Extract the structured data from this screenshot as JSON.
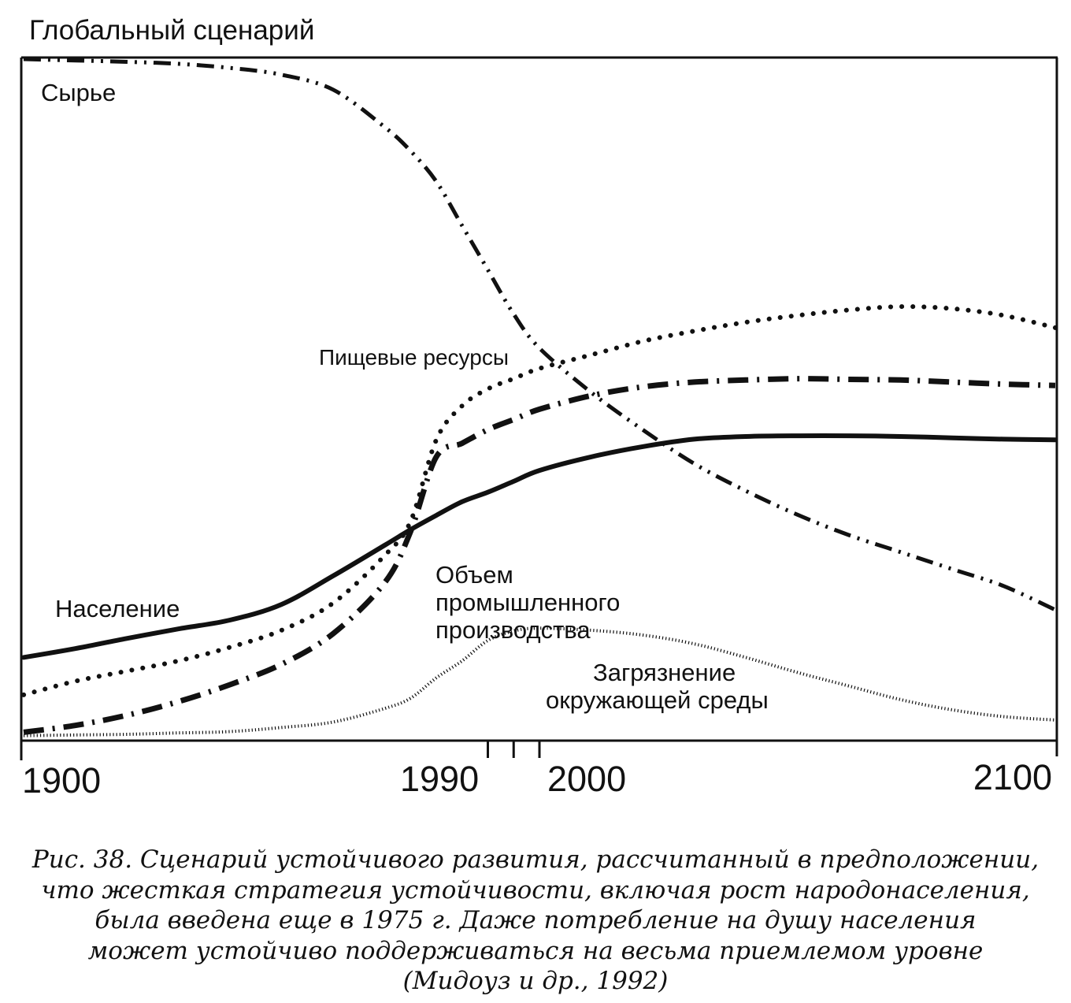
{
  "chart_data": {
    "type": "line",
    "title": "Глобальный сценарий",
    "x": [
      1900,
      1910,
      1920,
      1930,
      1940,
      1950,
      1960,
      1970,
      1975,
      1980,
      1985,
      1990,
      1995,
      2000,
      2010,
      2020,
      2030,
      2040,
      2050,
      2060,
      2070,
      2080,
      2090,
      2100
    ],
    "xlim": [
      1900,
      2100
    ],
    "ylim": [
      0,
      100
    ],
    "x_ticks": [
      {
        "value": 1900,
        "label": "1900"
      },
      {
        "value": 1990,
        "label": "1990"
      },
      {
        "value": 2000,
        "label": "2000"
      },
      {
        "value": 2100,
        "label": "2100"
      }
    ],
    "minor_ticks": [
      1990,
      1995,
      2000
    ],
    "series": [
      {
        "name": "Сырье",
        "style": "dash-dot-dot",
        "label": "Сырье",
        "values": [
          100,
          99.8,
          99.6,
          99.3,
          98.7,
          97.7,
          95.5,
          90,
          86.5,
          82,
          75.5,
          69,
          62.5,
          57.5,
          51,
          45.5,
          40.5,
          36.5,
          33,
          30,
          27.5,
          25,
          22.5,
          19
        ]
      },
      {
        "name": "Пищевые ресурсы",
        "style": "dotted",
        "label": "Пищевые ресурсы",
        "values": [
          6.5,
          8.5,
          10,
          11.5,
          13.5,
          16,
          20,
          27,
          32,
          44,
          49,
          51.5,
          53,
          54.5,
          56.5,
          58.5,
          60,
          61.3,
          62.3,
          63.1,
          63.6,
          63.3,
          62.3,
          60.5
        ]
      },
      {
        "name": "Объем промышленного производства",
        "style": "dash-dot",
        "label": [
          "Объем",
          "промышленного",
          "производства"
        ],
        "values": [
          1,
          2,
          3.5,
          5.5,
          8,
          11,
          15.5,
          23,
          30.5,
          41.5,
          43.5,
          45.5,
          47,
          48.5,
          50.5,
          51.8,
          52.5,
          52.8,
          53,
          52.9,
          52.8,
          52.5,
          52.2,
          52
        ]
      },
      {
        "name": "Население",
        "style": "solid",
        "label": "Население",
        "values": [
          12,
          13.3,
          14.8,
          16.2,
          17.5,
          19.8,
          24,
          28.5,
          30.8,
          32.9,
          34.9,
          36.3,
          37.9,
          39.5,
          41.5,
          43,
          44.1,
          44.5,
          44.6,
          44.6,
          44.5,
          44.3,
          44.1,
          44
        ]
      },
      {
        "name": "Загрязнение окружающей среды",
        "style": "thin-dotted",
        "label": [
          "Загрязнение",
          "окружающей среды"
        ],
        "values": [
          0.5,
          0.6,
          0.7,
          0.9,
          1.1,
          1.7,
          2.5,
          4.5,
          6,
          9,
          11.5,
          14.5,
          15.9,
          16.3,
          16,
          15.3,
          14,
          12,
          9.8,
          7.8,
          5.8,
          4.3,
          3.3,
          2.8
        ]
      }
    ]
  },
  "caption": {
    "lines": [
      "Рис. 38. Сценарий устойчивого развития, рассчитанный в предположении,",
      "что жесткая стратегия устойчивости, включая рост народонаселения,",
      "была введена еще в 1975 г. Даже потребление на душу населения",
      "может устойчиво поддерживаться на весьма приемлемом уровне",
      "(Мидоуз и др., 1992)"
    ]
  }
}
